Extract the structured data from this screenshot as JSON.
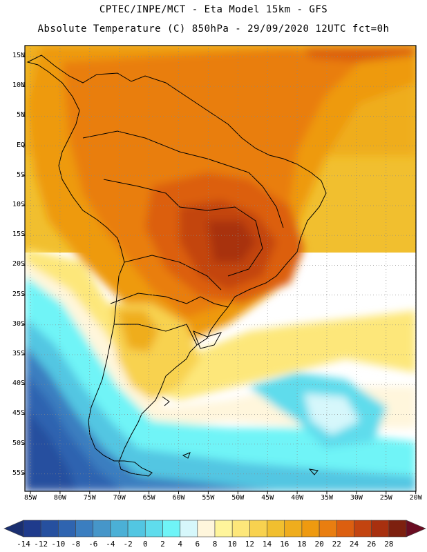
{
  "titles": {
    "line1": "CPTEC/INPE/MCT -  Eta Model 15km - GFS",
    "line2": "Absolute Temperature (C) 850hPa - 29/09/2020 12UTC fct=0h"
  },
  "axes": {
    "lat_labels": [
      "15N",
      "10N",
      "5N",
      "EQ",
      "5S",
      "10S",
      "15S",
      "20S",
      "25S",
      "30S",
      "35S",
      "40S",
      "45S",
      "50S",
      "55S"
    ],
    "lon_labels": [
      "85W",
      "80W",
      "75W",
      "70W",
      "65W",
      "60W",
      "55W",
      "50W",
      "45W",
      "40W",
      "35W",
      "30W",
      "25W",
      "20W"
    ]
  },
  "colorbar": {
    "labels": [
      "-14",
      "-12",
      "-10",
      "-8",
      "-6",
      "-4",
      "-2",
      "0",
      "2",
      "4",
      "6",
      "8",
      "10",
      "12",
      "14",
      "16",
      "18",
      "20",
      "22",
      "24",
      "26",
      "28"
    ],
    "colors": [
      "#1f3b8c",
      "#26509f",
      "#2f64b0",
      "#3b7ec0",
      "#4696c9",
      "#4bb0d6",
      "#52c6e2",
      "#5fdcec",
      "#6ff4f7",
      "#d6f7fb",
      "#fff6dc",
      "#fff59b",
      "#fde77a",
      "#f8d24f",
      "#f1bf2f",
      "#efad1d",
      "#ee9a10",
      "#e97e10",
      "#dc5f10",
      "#c34410",
      "#a8300f",
      "#7d200f"
    ],
    "under_color": "#1a2f70",
    "over_color": "#6a0d22"
  }
}
